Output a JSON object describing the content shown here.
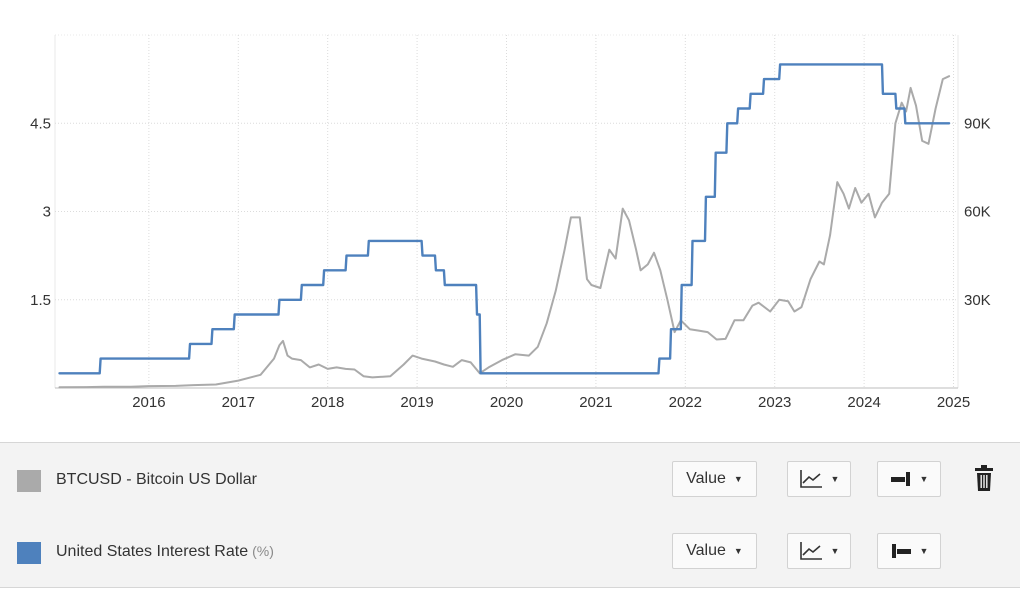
{
  "chart_data": {
    "type": "line",
    "title": "",
    "x_ticks": [
      "2016",
      "2017",
      "2018",
      "2019",
      "2020",
      "2021",
      "2022",
      "2023",
      "2024",
      "2025"
    ],
    "x_range": [
      2015.45,
      2025.55
    ],
    "y_left": {
      "ticks": [
        1.5,
        3,
        4.5
      ],
      "tick_labels": [
        "1.5",
        "3",
        "4.5"
      ],
      "range": [
        0,
        6
      ]
    },
    "y_right": {
      "ticks": [
        30000,
        60000,
        90000
      ],
      "tick_labels": [
        "30K",
        "60K",
        "90K"
      ],
      "range": [
        0,
        120000
      ]
    },
    "grid": true,
    "series": [
      {
        "name": "BTCUSD - Bitcoin US Dollar",
        "axis": "right",
        "color": "#aaaaaa",
        "points": [
          [
            2015.5,
            280
          ],
          [
            2015.8,
            300
          ],
          [
            2016.0,
            430
          ],
          [
            2016.3,
            440
          ],
          [
            2016.5,
            650
          ],
          [
            2016.8,
            700
          ],
          [
            2017.0,
            1000
          ],
          [
            2017.25,
            1200
          ],
          [
            2017.5,
            2500
          ],
          [
            2017.75,
            4500
          ],
          [
            2017.9,
            10000
          ],
          [
            2017.96,
            14500
          ],
          [
            2018.0,
            16000
          ],
          [
            2018.05,
            11000
          ],
          [
            2018.1,
            10000
          ],
          [
            2018.2,
            9500
          ],
          [
            2018.3,
            7000
          ],
          [
            2018.4,
            8000
          ],
          [
            2018.5,
            6500
          ],
          [
            2018.6,
            7000
          ],
          [
            2018.7,
            6500
          ],
          [
            2018.8,
            6300
          ],
          [
            2018.9,
            4000
          ],
          [
            2019.0,
            3600
          ],
          [
            2019.2,
            4000
          ],
          [
            2019.35,
            8000
          ],
          [
            2019.45,
            11000
          ],
          [
            2019.55,
            10000
          ],
          [
            2019.7,
            9000
          ],
          [
            2019.8,
            8000
          ],
          [
            2019.9,
            7200
          ],
          [
            2020.0,
            9500
          ],
          [
            2020.1,
            8700
          ],
          [
            2020.2,
            5000
          ],
          [
            2020.3,
            7000
          ],
          [
            2020.45,
            9500
          ],
          [
            2020.6,
            11500
          ],
          [
            2020.75,
            11000
          ],
          [
            2020.85,
            14000
          ],
          [
            2020.95,
            22000
          ],
          [
            2021.05,
            33000
          ],
          [
            2021.15,
            47000
          ],
          [
            2021.22,
            58000
          ],
          [
            2021.32,
            58000
          ],
          [
            2021.4,
            37000
          ],
          [
            2021.45,
            35000
          ],
          [
            2021.55,
            34000
          ],
          [
            2021.65,
            47000
          ],
          [
            2021.72,
            44000
          ],
          [
            2021.8,
            61000
          ],
          [
            2021.87,
            57000
          ],
          [
            2021.95,
            47000
          ],
          [
            2022.0,
            40000
          ],
          [
            2022.08,
            42000
          ],
          [
            2022.15,
            46000
          ],
          [
            2022.22,
            40000
          ],
          [
            2022.3,
            30000
          ],
          [
            2022.38,
            19000
          ],
          [
            2022.45,
            23000
          ],
          [
            2022.55,
            20000
          ],
          [
            2022.65,
            19500
          ],
          [
            2022.75,
            19000
          ],
          [
            2022.85,
            16500
          ],
          [
            2022.95,
            16700
          ],
          [
            2023.05,
            23000
          ],
          [
            2023.15,
            23000
          ],
          [
            2023.25,
            28000
          ],
          [
            2023.32,
            29000
          ],
          [
            2023.45,
            26000
          ],
          [
            2023.55,
            30000
          ],
          [
            2023.65,
            29500
          ],
          [
            2023.72,
            26000
          ],
          [
            2023.8,
            27500
          ],
          [
            2023.9,
            37000
          ],
          [
            2024.0,
            43000
          ],
          [
            2024.05,
            42000
          ],
          [
            2024.12,
            52000
          ],
          [
            2024.2,
            70000
          ],
          [
            2024.27,
            66000
          ],
          [
            2024.33,
            61000
          ],
          [
            2024.4,
            68000
          ],
          [
            2024.47,
            63000
          ],
          [
            2024.55,
            66000
          ],
          [
            2024.62,
            58000
          ],
          [
            2024.7,
            63000
          ],
          [
            2024.78,
            66000
          ],
          [
            2024.85,
            90000
          ],
          [
            2024.92,
            97000
          ],
          [
            2024.97,
            94000
          ],
          [
            2025.02,
            102000
          ],
          [
            2025.08,
            96000
          ],
          [
            2025.15,
            84000
          ],
          [
            2025.22,
            83000
          ],
          [
            2025.3,
            95000
          ],
          [
            2025.38,
            105000
          ],
          [
            2025.45,
            106000
          ]
        ]
      },
      {
        "name": "United States Interest Rate",
        "unit": "(%)",
        "axis": "left",
        "color": "#4e81bd",
        "points": [
          [
            2015.5,
            0.25
          ],
          [
            2015.95,
            0.25
          ],
          [
            2015.96,
            0.5
          ],
          [
            2016.95,
            0.5
          ],
          [
            2016.96,
            0.75
          ],
          [
            2017.2,
            0.75
          ],
          [
            2017.21,
            1.0
          ],
          [
            2017.45,
            1.0
          ],
          [
            2017.46,
            1.25
          ],
          [
            2017.95,
            1.25
          ],
          [
            2017.96,
            1.5
          ],
          [
            2018.2,
            1.5
          ],
          [
            2018.21,
            1.75
          ],
          [
            2018.45,
            1.75
          ],
          [
            2018.46,
            2.0
          ],
          [
            2018.7,
            2.0
          ],
          [
            2018.71,
            2.25
          ],
          [
            2018.95,
            2.25
          ],
          [
            2018.96,
            2.5
          ],
          [
            2019.55,
            2.5
          ],
          [
            2019.56,
            2.25
          ],
          [
            2019.7,
            2.25
          ],
          [
            2019.71,
            2.0
          ],
          [
            2019.8,
            2.0
          ],
          [
            2019.81,
            1.75
          ],
          [
            2020.16,
            1.75
          ],
          [
            2020.17,
            1.25
          ],
          [
            2020.2,
            1.25
          ],
          [
            2020.21,
            0.25
          ],
          [
            2022.2,
            0.25
          ],
          [
            2022.21,
            0.5
          ],
          [
            2022.33,
            0.5
          ],
          [
            2022.34,
            1.0
          ],
          [
            2022.45,
            1.0
          ],
          [
            2022.46,
            1.75
          ],
          [
            2022.57,
            1.75
          ],
          [
            2022.58,
            2.5
          ],
          [
            2022.72,
            2.5
          ],
          [
            2022.73,
            3.25
          ],
          [
            2022.83,
            3.25
          ],
          [
            2022.84,
            4.0
          ],
          [
            2022.96,
            4.0
          ],
          [
            2022.97,
            4.5
          ],
          [
            2023.08,
            4.5
          ],
          [
            2023.09,
            4.75
          ],
          [
            2023.22,
            4.75
          ],
          [
            2023.23,
            5.0
          ],
          [
            2023.37,
            5.0
          ],
          [
            2023.38,
            5.25
          ],
          [
            2023.55,
            5.25
          ],
          [
            2023.56,
            5.5
          ],
          [
            2024.7,
            5.5
          ],
          [
            2024.71,
            5.0
          ],
          [
            2024.85,
            5.0
          ],
          [
            2024.86,
            4.75
          ],
          [
            2024.95,
            4.75
          ],
          [
            2024.96,
            4.5
          ],
          [
            2025.45,
            4.5
          ]
        ]
      }
    ]
  },
  "legend": {
    "rows": [
      {
        "name": "BTCUSD - Bitcoin US Dollar",
        "unit": "",
        "color": "#aaaaaa",
        "value_label": "Value",
        "axis_icon": "axis-right-icon"
      },
      {
        "name": "United States Interest Rate",
        "unit": "(%)",
        "color": "#4e81bd",
        "value_label": "Value",
        "axis_icon": "axis-left-icon"
      }
    ],
    "delete_icon": "trash-icon",
    "chart_type_icon": "line-chart-icon",
    "caret_icon": "caret-down-icon"
  }
}
